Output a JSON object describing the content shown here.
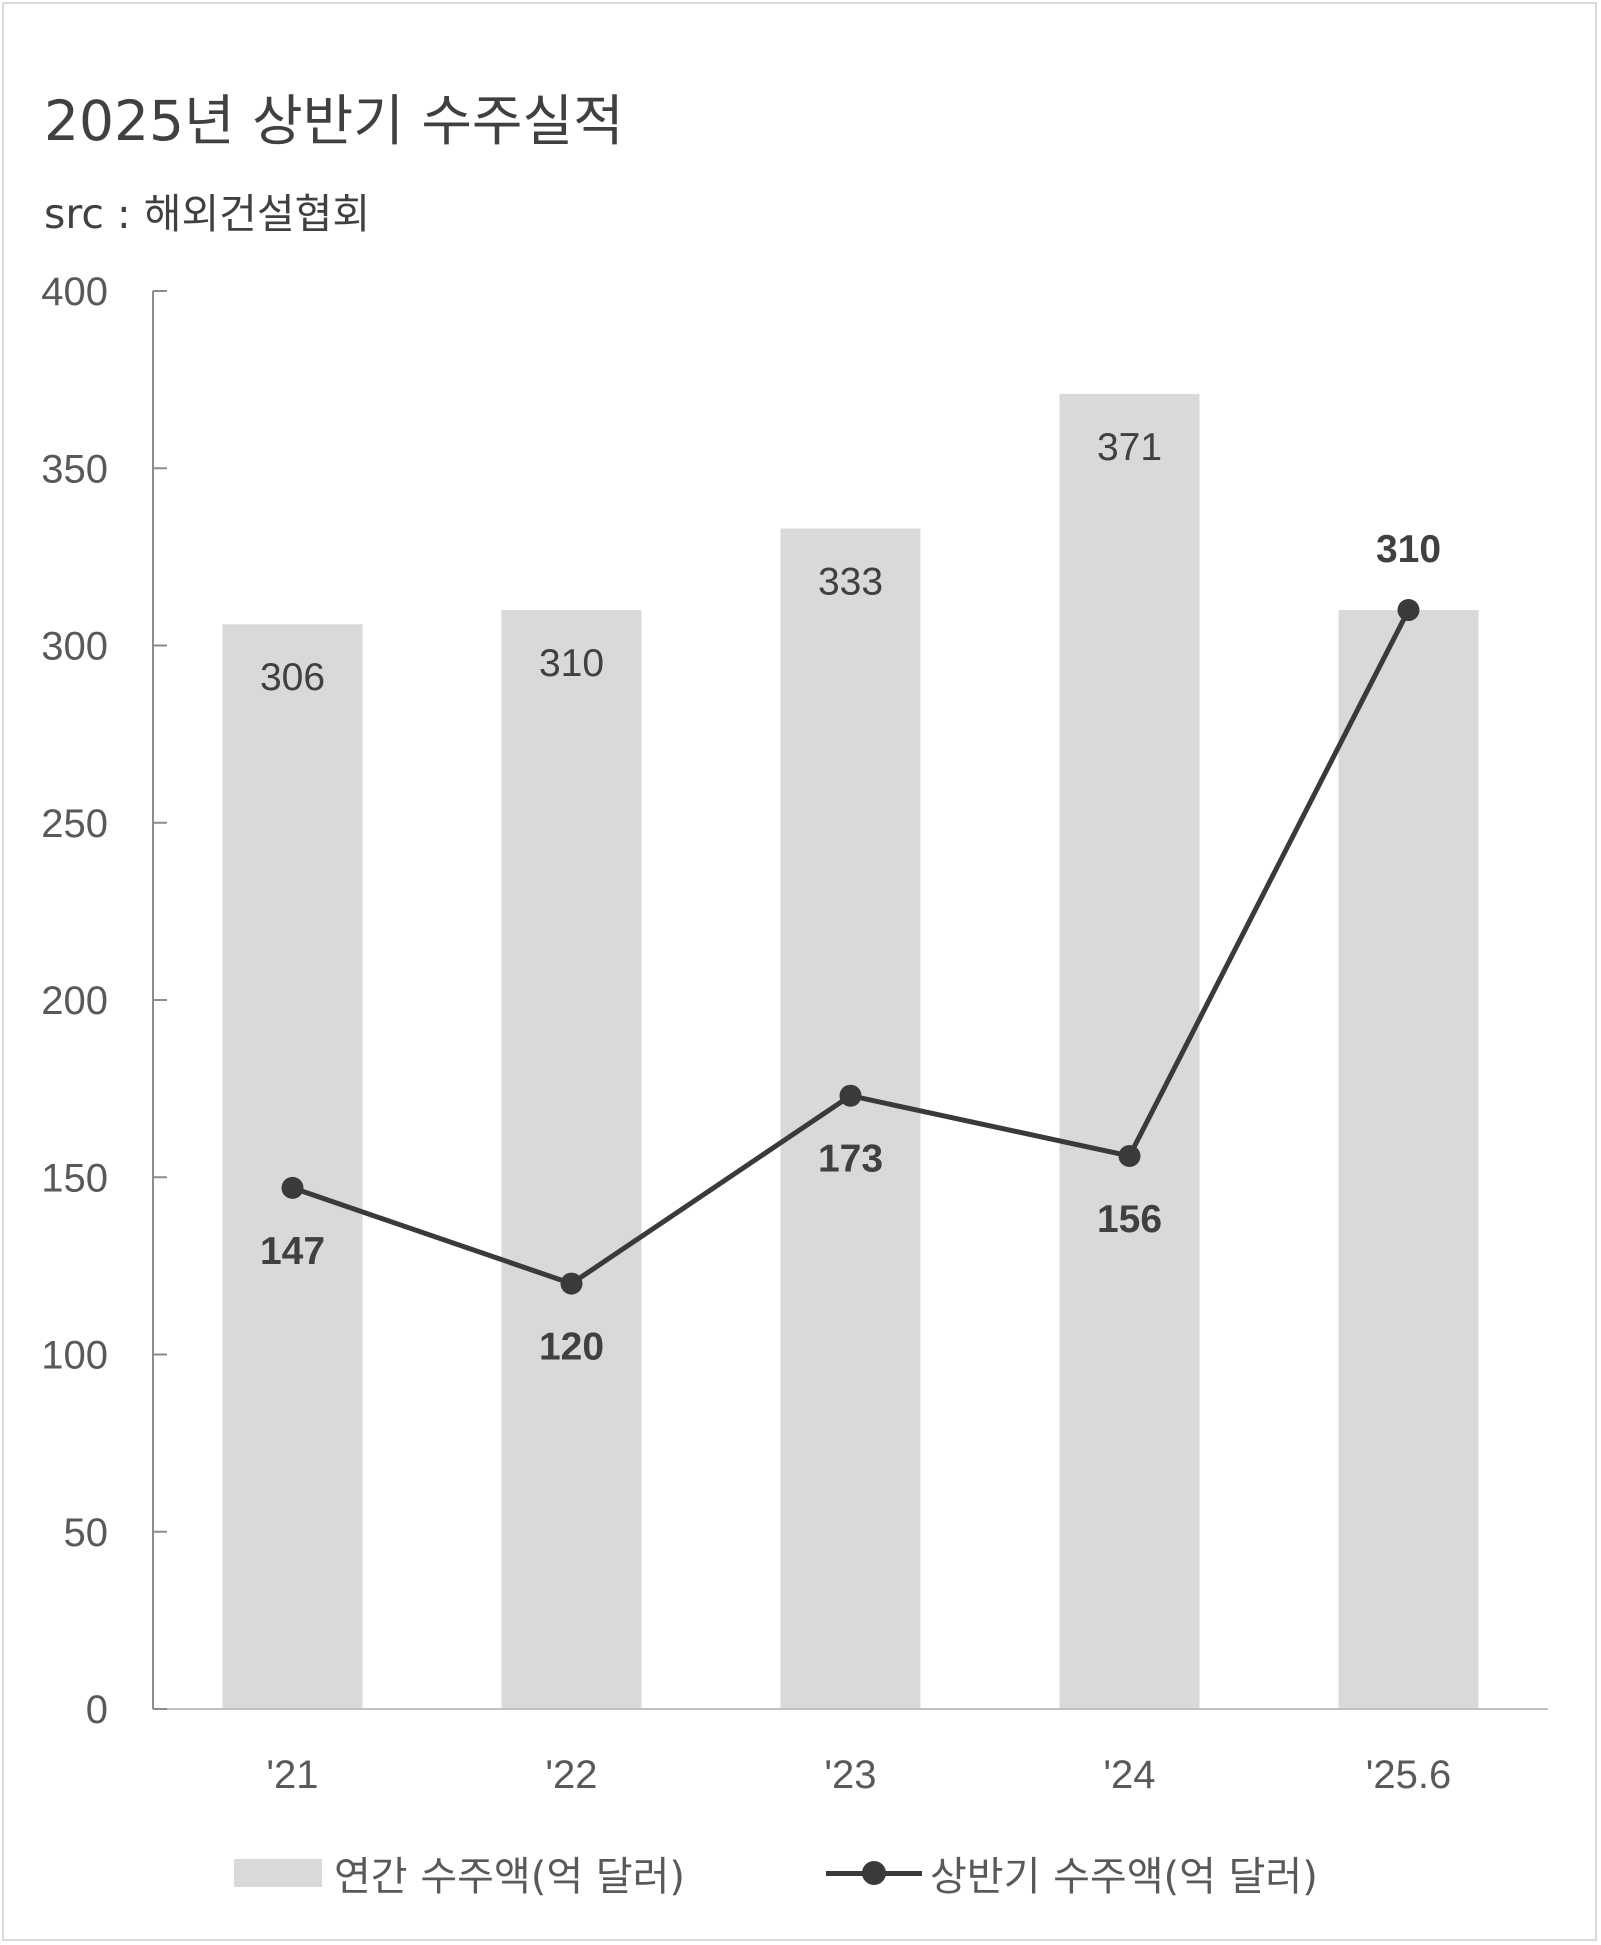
{
  "title": "2025년 상반기 수주실적",
  "subtitle": "src : 해외건설협회",
  "colors": {
    "bar": "#d9d9d9",
    "line": "#3a3a3a",
    "axis": "#8c8c8c",
    "text": "#404040"
  },
  "chart_data": {
    "type": "bar+line",
    "categories": [
      "'21",
      "'22",
      "'23",
      "'24",
      "'25.6"
    ],
    "ylim": [
      0,
      400
    ],
    "yticks": [
      0,
      50,
      100,
      150,
      200,
      250,
      300,
      350,
      400
    ],
    "grid": false,
    "legend_position": "bottom",
    "series": [
      {
        "name": "연간 수주액(억 달러)",
        "type": "bar",
        "values": [
          306,
          310,
          333,
          371,
          310
        ],
        "labels": [
          "306",
          "310",
          "333",
          "371",
          ""
        ]
      },
      {
        "name": "상반기 수주액(억 달러)",
        "type": "line",
        "values": [
          147,
          120,
          173,
          156,
          310
        ],
        "labels": [
          "147",
          "120",
          "173",
          "156",
          "310"
        ],
        "label_side": [
          "below",
          "below",
          "below",
          "below",
          "above"
        ]
      }
    ]
  }
}
